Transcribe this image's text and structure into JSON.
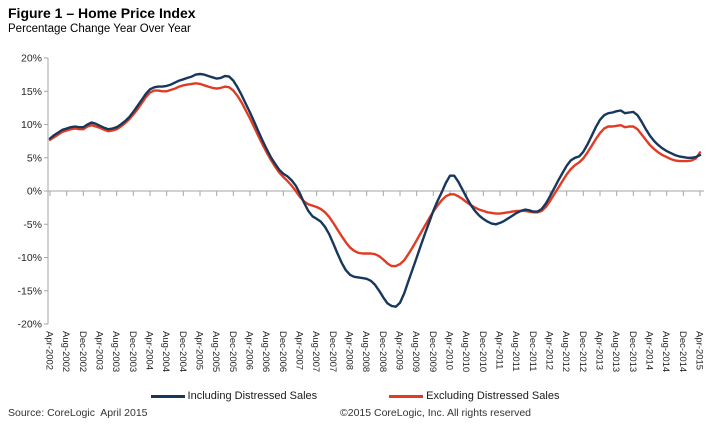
{
  "header": {
    "title": "Figure 1 – Home Price Index",
    "subtitle": "Percentage Change Year Over Year"
  },
  "chart_data": {
    "type": "line",
    "title": "Figure 1 – Home Price Index",
    "subtitle": "Percentage Change Year Over Year",
    "x_unit": "month",
    "x_start": "Apr-2002",
    "x_end": "Apr-2015",
    "x_points_per_tick": 4,
    "x_tick_labels": [
      "Apr-2002",
      "Aug-2002",
      "Dec-2002",
      "Apr-2003",
      "Aug-2003",
      "Dec-2003",
      "Apr-2004",
      "Aug-2004",
      "Dec-2004",
      "Apr-2005",
      "Aug-2005",
      "Dec-2005",
      "Apr-2006",
      "Aug-2006",
      "Dec-2006",
      "Apr-2007",
      "Aug-2007",
      "Dec-2007",
      "Apr-2008",
      "Aug-2008",
      "Dec-2008",
      "Apr-2009",
      "Aug-2009",
      "Dec-2009",
      "Apr-2010",
      "Aug-2010",
      "Dec-2010",
      "Apr-2011",
      "Aug-2011",
      "Dec-2011",
      "Apr-2012",
      "Aug-2012",
      "Dec-2012",
      "Apr-2013",
      "Aug-2013",
      "Dec-2013",
      "Apr-2014",
      "Aug-2014",
      "Dec-2014",
      "Apr-2015"
    ],
    "ylim": [
      -20,
      20
    ],
    "y_tick_values": [
      20,
      15,
      10,
      5,
      0,
      -5,
      -10,
      -15,
      -20
    ],
    "y_tick_labels": [
      "20%",
      "15%",
      "10%",
      "5%",
      "0%",
      "-5%",
      "-10%",
      "-15%",
      "-20%"
    ],
    "grid": "zero-line-only",
    "legend_position": "bottom",
    "axis_color": "#a6a6a6",
    "label_color": "#262626",
    "series": [
      {
        "name": "Including Distressed Sales",
        "color": "#17375C",
        "values": [
          7.9,
          8.4,
          8.8,
          9.2,
          9.4,
          9.6,
          9.7,
          9.6,
          9.6,
          10.0,
          10.3,
          10.1,
          9.8,
          9.5,
          9.3,
          9.4,
          9.6,
          10.0,
          10.5,
          11.1,
          11.9,
          12.8,
          13.7,
          14.6,
          15.3,
          15.6,
          15.7,
          15.7,
          15.8,
          16.0,
          16.3,
          16.6,
          16.8,
          17.0,
          17.2,
          17.5,
          17.6,
          17.5,
          17.3,
          17.1,
          16.9,
          17.0,
          17.3,
          17.2,
          16.6,
          15.6,
          14.4,
          13.1,
          11.8,
          10.4,
          9.0,
          7.6,
          6.3,
          5.1,
          4.1,
          3.2,
          2.6,
          2.2,
          1.6,
          0.8,
          -0.4,
          -1.8,
          -3.0,
          -3.8,
          -4.2,
          -4.6,
          -5.4,
          -6.5,
          -7.9,
          -9.4,
          -10.8,
          -11.9,
          -12.6,
          -12.9,
          -13.0,
          -13.1,
          -13.2,
          -13.5,
          -14.1,
          -15.0,
          -16.0,
          -16.9,
          -17.3,
          -17.4,
          -16.8,
          -15.4,
          -13.6,
          -11.8,
          -10.0,
          -8.2,
          -6.4,
          -4.7,
          -3.0,
          -1.5,
          -0.2,
          1.2,
          2.3,
          2.3,
          1.4,
          0.2,
          -1.0,
          -2.1,
          -3.0,
          -3.7,
          -4.2,
          -4.6,
          -4.9,
          -5.0,
          -4.8,
          -4.5,
          -4.1,
          -3.7,
          -3.3,
          -3.0,
          -2.8,
          -2.9,
          -3.1,
          -3.1,
          -2.7,
          -1.9,
          -0.8,
          0.4,
          1.6,
          2.7,
          3.8,
          4.6,
          5.0,
          5.2,
          5.9,
          7.0,
          8.3,
          9.6,
          10.7,
          11.4,
          11.7,
          11.8,
          12.0,
          12.1,
          11.7,
          11.8,
          11.9,
          11.4,
          10.4,
          9.3,
          8.3,
          7.5,
          6.9,
          6.4,
          6.0,
          5.7,
          5.4,
          5.2,
          5.1,
          5.0,
          5.0,
          5.1,
          5.4
        ]
      },
      {
        "name": "Excluding Distressed Sales",
        "color": "#E23B24",
        "values": [
          7.7,
          8.1,
          8.5,
          8.9,
          9.1,
          9.3,
          9.4,
          9.3,
          9.3,
          9.7,
          9.9,
          9.7,
          9.5,
          9.2,
          9.0,
          9.1,
          9.3,
          9.7,
          10.2,
          10.8,
          11.5,
          12.3,
          13.2,
          14.1,
          14.8,
          15.1,
          15.1,
          15.0,
          15.0,
          15.2,
          15.4,
          15.7,
          15.9,
          16.0,
          16.1,
          16.2,
          16.1,
          15.9,
          15.7,
          15.5,
          15.4,
          15.5,
          15.7,
          15.6,
          15.1,
          14.3,
          13.3,
          12.1,
          10.9,
          9.6,
          8.3,
          7.0,
          5.8,
          4.7,
          3.7,
          2.8,
          2.1,
          1.5,
          0.8,
          0.0,
          -0.9,
          -1.6,
          -2.0,
          -2.2,
          -2.4,
          -2.7,
          -3.2,
          -3.9,
          -4.8,
          -5.8,
          -6.8,
          -7.7,
          -8.5,
          -9.0,
          -9.3,
          -9.4,
          -9.4,
          -9.4,
          -9.5,
          -9.8,
          -10.3,
          -10.9,
          -11.3,
          -11.3,
          -11.0,
          -10.4,
          -9.5,
          -8.5,
          -7.4,
          -6.3,
          -5.2,
          -4.1,
          -3.1,
          -2.2,
          -1.4,
          -0.8,
          -0.5,
          -0.5,
          -0.8,
          -1.2,
          -1.7,
          -2.1,
          -2.5,
          -2.8,
          -3.0,
          -3.2,
          -3.3,
          -3.4,
          -3.4,
          -3.3,
          -3.2,
          -3.1,
          -3.0,
          -3.0,
          -3.0,
          -3.1,
          -3.2,
          -3.2,
          -3.0,
          -2.4,
          -1.5,
          -0.5,
          0.5,
          1.5,
          2.5,
          3.3,
          3.9,
          4.3,
          4.9,
          5.8,
          6.8,
          7.8,
          8.7,
          9.4,
          9.7,
          9.7,
          9.8,
          9.9,
          9.6,
          9.7,
          9.7,
          9.3,
          8.5,
          7.7,
          6.9,
          6.3,
          5.8,
          5.4,
          5.1,
          4.8,
          4.6,
          4.5,
          4.5,
          4.5,
          4.6,
          4.9,
          5.8
        ]
      }
    ]
  },
  "footer": {
    "source": "Source: CoreLogic  April 2015",
    "copyright": "©2015 CoreLogic, Inc. All rights reserved"
  }
}
